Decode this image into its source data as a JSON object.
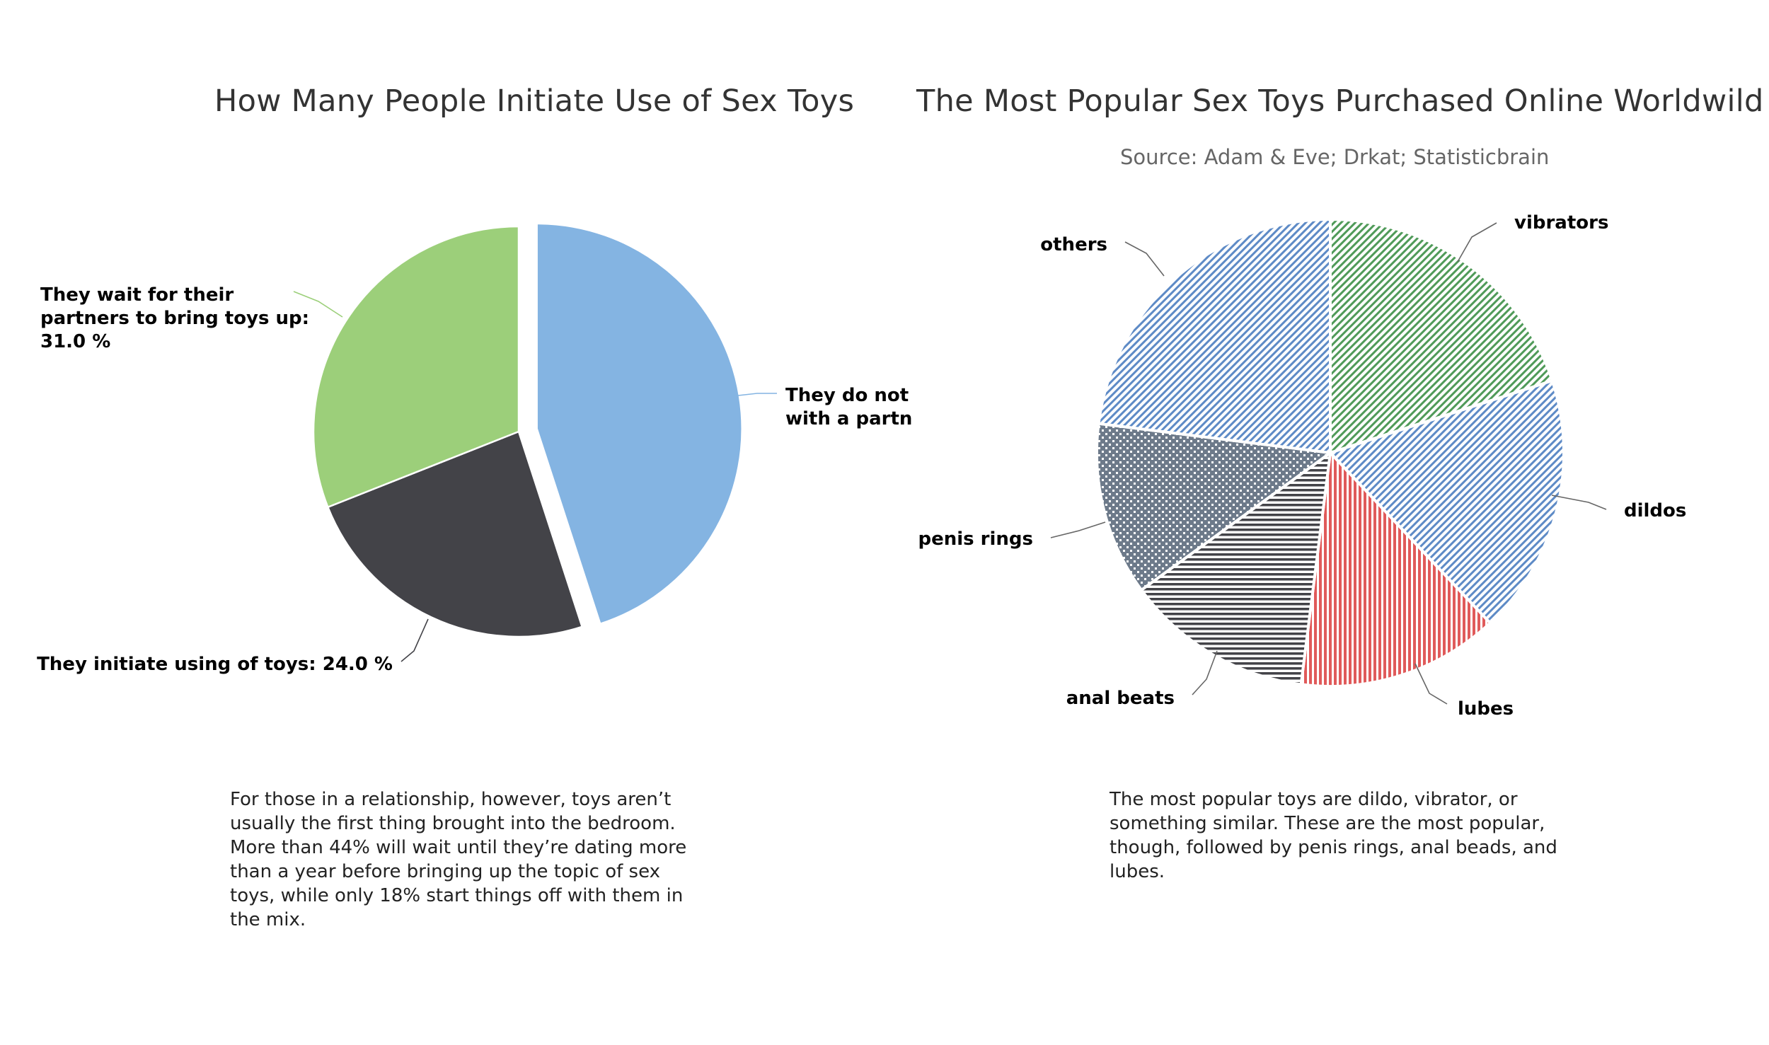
{
  "chart_data": [
    {
      "type": "pie",
      "title": "How Many People Initiate Use of Sex Toys",
      "slices": [
        {
          "label": "They do not",
          "label_line2": "with a partne",
          "value": 45.0,
          "color": "#84b4e2",
          "exploded": true
        },
        {
          "label": "They initiate using of toys: 24.0 %",
          "value": 24.0,
          "color": "#434348"
        },
        {
          "label": "They wait for their",
          "label_line2": "partners to bring toys up:",
          "label_line3": "31.0 %",
          "value": 31.0,
          "color": "#9ccf7a"
        }
      ]
    },
    {
      "type": "pie",
      "title": "The Most Popular Sex Toys Purchased Online Worldwild",
      "subtitle": "Source: Adam & Eve; Drkat; Statisticbrain",
      "slices": [
        {
          "label": "vibrators",
          "value": 20,
          "color": "#4f9a58",
          "pattern": "diagonal"
        },
        {
          "label": "dildos",
          "value": 18,
          "color": "#5d8ac6",
          "pattern": "diagonal"
        },
        {
          "label": "lubes",
          "value": 14,
          "color": "#e05a5a",
          "pattern": "vertical"
        },
        {
          "label": "anal beats",
          "value": 13,
          "color": "#434348",
          "pattern": "horizontal"
        },
        {
          "label": "penis rings",
          "value": 12,
          "color": "#6d7a8a",
          "pattern": "dots"
        },
        {
          "label": "others",
          "value": 23,
          "color": "#5d8ac6",
          "pattern": "diagonal"
        }
      ]
    }
  ],
  "captions": {
    "left": "For those in a relationship, however, toys aren’t\nusually the first thing brought into the bedroom.\nMore than 44% will wait until they’re dating more\nthan a year before bringing up the topic of sex\ntoys, while only 18% start things off with them in\nthe mix.",
    "right": "The most popular toys are dildo, vibrator, or\nsomething similar. These are the most popular,\nthough, followed by penis rings, anal beads, and\nlubes."
  }
}
